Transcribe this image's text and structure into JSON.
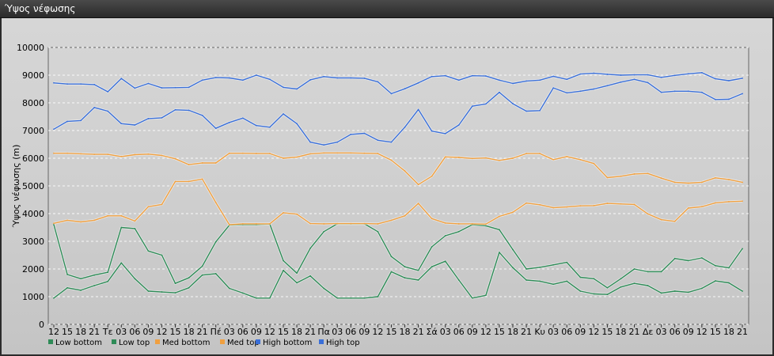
{
  "window": {
    "title": "Ύψος νέφωσης"
  },
  "chart_data": {
    "type": "line",
    "title": "",
    "xlabel": "",
    "ylabel": "Ύψος νέφωσης (m)",
    "ylim": [
      0,
      10000
    ],
    "yticks": [
      0,
      1000,
      2000,
      3000,
      4000,
      5000,
      6000,
      7000,
      8000,
      9000,
      10000
    ],
    "x_tick_labels": [
      "12",
      "15",
      "18",
      "21",
      "Τε",
      "03",
      "06",
      "09",
      "12",
      "15",
      "18",
      "21",
      "Πέ",
      "03",
      "06",
      "09",
      "12",
      "15",
      "18",
      "21",
      "Πα",
      "03",
      "06",
      "09",
      "12",
      "15",
      "18",
      "21",
      "Σά",
      "03",
      "06",
      "09",
      "12",
      "15",
      "18",
      "21",
      "Κυ",
      "03",
      "06",
      "09",
      "12",
      "15",
      "18",
      "21",
      "Δε",
      "03",
      "06",
      "09",
      "12",
      "15",
      "18",
      "21"
    ],
    "grid": true,
    "legend_position": "bottom-left",
    "series": [
      {
        "name": "Low bottom",
        "color": "#2e8b57",
        "values": [
          950,
          1320,
          1230,
          1400,
          1550,
          2220,
          1650,
          1200,
          1170,
          1140,
          1320,
          1780,
          1830,
          1300,
          1130,
          950,
          950,
          1950,
          1500,
          1750,
          1300,
          950,
          950,
          950,
          1000,
          1900,
          1680,
          1600,
          2080,
          2280,
          1600,
          950,
          1050,
          2600,
          2050,
          1600,
          1560,
          1450,
          1560,
          1200,
          1100,
          1080,
          1350,
          1480,
          1400,
          1130,
          1200,
          1160,
          1300,
          1570,
          1500,
          1200
        ]
      },
      {
        "name": "Low top",
        "color": "#2e8b57",
        "values": [
          3600,
          1800,
          1650,
          1780,
          1880,
          3500,
          3460,
          2650,
          2500,
          1480,
          1680,
          2100,
          2980,
          3580,
          3600,
          3600,
          3620,
          2300,
          1850,
          2750,
          3350,
          3630,
          3630,
          3630,
          3350,
          2450,
          2080,
          1950,
          2800,
          3200,
          3350,
          3600,
          3560,
          3420,
          2700,
          2000,
          2060,
          2150,
          2240,
          1700,
          1650,
          1320,
          1650,
          2000,
          1900,
          1900,
          2380,
          2300,
          2400,
          2120,
          2040,
          2730
        ]
      },
      {
        "name": "Med bottom",
        "color": "#f0a040",
        "values": [
          3650,
          3760,
          3700,
          3760,
          3920,
          3920,
          3730,
          4250,
          4330,
          5160,
          5160,
          5250,
          4400,
          3600,
          3630,
          3630,
          3630,
          4030,
          3980,
          3640,
          3630,
          3640,
          3640,
          3640,
          3630,
          3760,
          3920,
          4370,
          3820,
          3660,
          3630,
          3630,
          3620,
          3900,
          4050,
          4380,
          4320,
          4210,
          4240,
          4280,
          4290,
          4370,
          4350,
          4330,
          3990,
          3780,
          3720,
          4200,
          4250,
          4390,
          4430,
          4450
        ]
      },
      {
        "name": "Med top",
        "color": "#f0a040",
        "values": [
          6180,
          6180,
          6160,
          6140,
          6140,
          6060,
          6130,
          6150,
          6100,
          5980,
          5770,
          5830,
          5830,
          6180,
          6180,
          6170,
          6170,
          6000,
          6040,
          6160,
          6190,
          6190,
          6190,
          6180,
          6170,
          5930,
          5540,
          5050,
          5350,
          6050,
          6030,
          5990,
          6010,
          5920,
          6000,
          6170,
          6170,
          5950,
          6060,
          5950,
          5810,
          5300,
          5350,
          5430,
          5450,
          5280,
          5130,
          5100,
          5130,
          5290,
          5230,
          5130
        ]
      },
      {
        "name": "High bottom",
        "color": "#3a6fd8",
        "values": [
          7050,
          7330,
          7360,
          7830,
          7700,
          7250,
          7200,
          7430,
          7460,
          7750,
          7730,
          7550,
          7080,
          7290,
          7450,
          7180,
          7120,
          7600,
          7250,
          6580,
          6480,
          6580,
          6860,
          6900,
          6650,
          6580,
          7120,
          7760,
          6980,
          6890,
          7200,
          7880,
          7960,
          8380,
          7970,
          7700,
          7720,
          8540,
          8360,
          8420,
          8500,
          8620,
          8750,
          8850,
          8730,
          8380,
          8420,
          8420,
          8380,
          8120,
          8130,
          8330
        ]
      },
      {
        "name": "High top",
        "color": "#3a6fd8",
        "values": [
          8720,
          8680,
          8680,
          8660,
          8400,
          8880,
          8530,
          8700,
          8540,
          8550,
          8560,
          8820,
          8910,
          8900,
          8820,
          9000,
          8850,
          8560,
          8500,
          8830,
          8950,
          8900,
          8900,
          8890,
          8760,
          8330,
          8510,
          8720,
          8950,
          8980,
          8820,
          8980,
          8970,
          8820,
          8700,
          8790,
          8820,
          8960,
          8850,
          9040,
          9070,
          9030,
          9000,
          9010,
          9010,
          8920,
          8990,
          9050,
          9090,
          8870,
          8800,
          8890
        ]
      }
    ]
  }
}
